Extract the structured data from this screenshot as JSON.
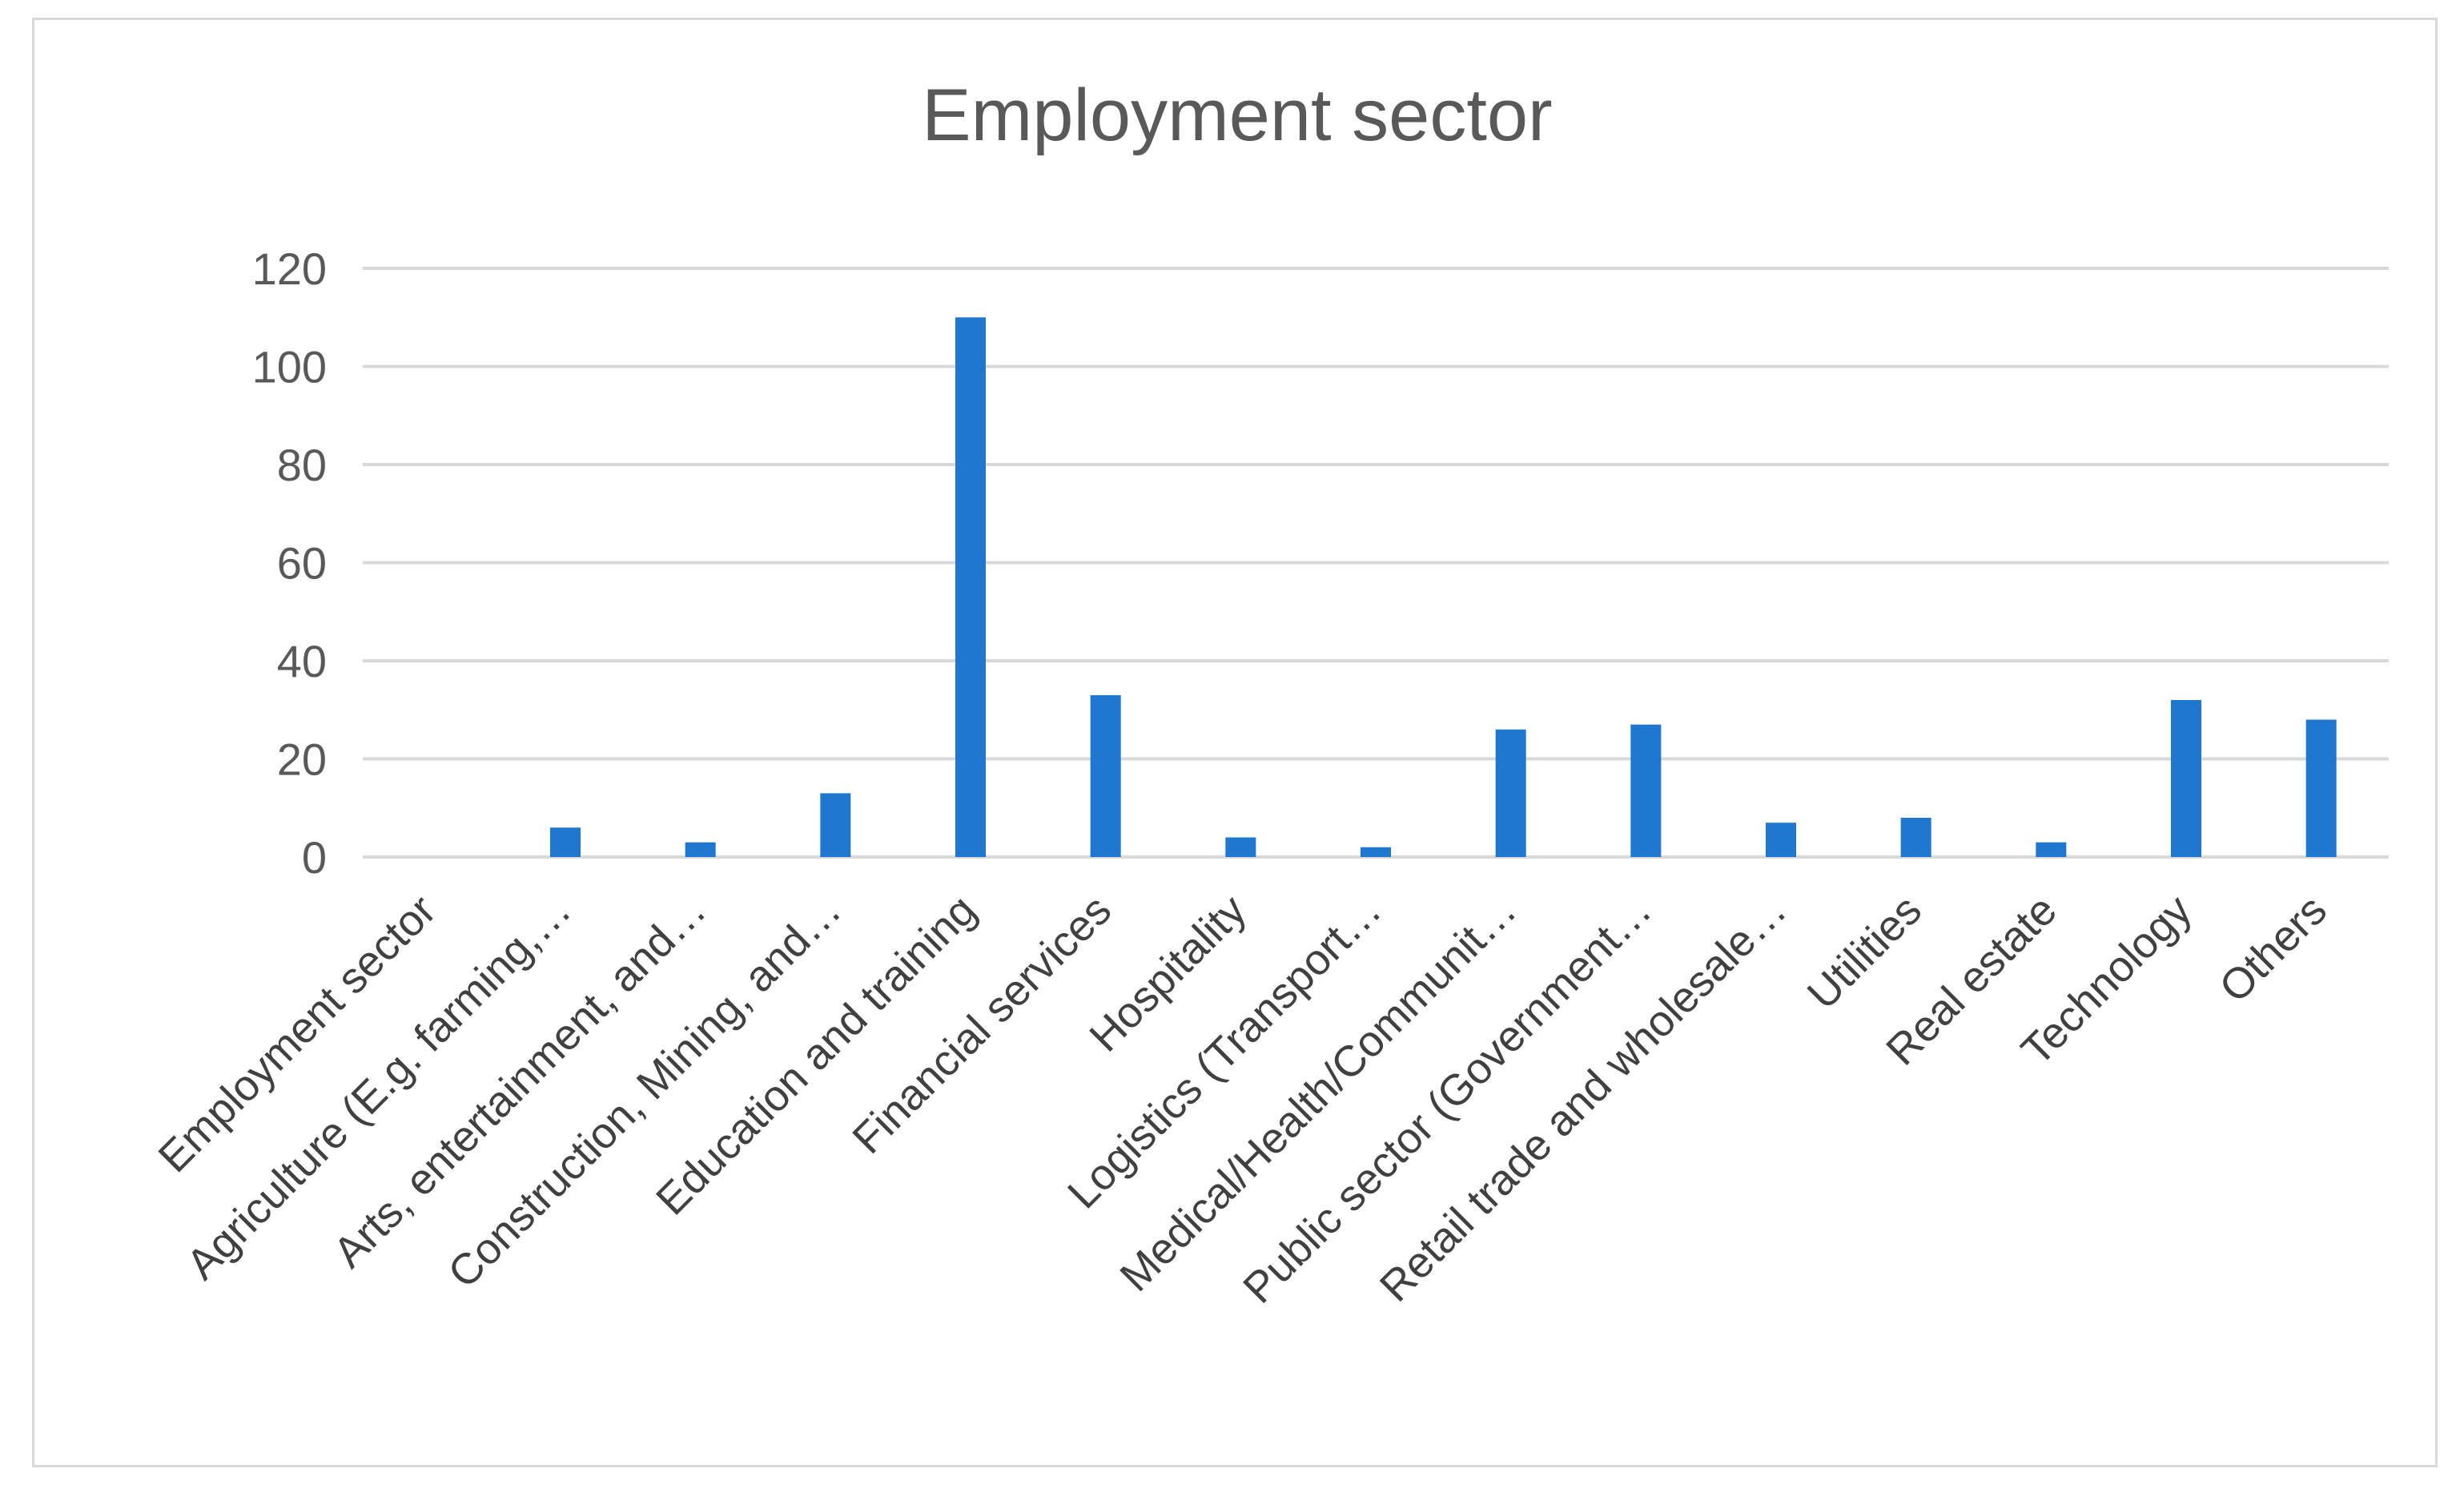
{
  "chart_data": {
    "type": "bar",
    "title": "Employment sector",
    "categories": [
      "Employment sector",
      "Agriculture (E.g. farming,…",
      "Arts, entertainment, and…",
      "Construction, Mining, and…",
      "Education and training",
      "Financial services",
      "Hospitality",
      "Logistics (Transport…",
      "Medical/Health/Communit…",
      "Public sector (Government…",
      "Retail trade and wholesale…",
      "Utilities",
      "Real estate",
      "Technology",
      "Others"
    ],
    "values": [
      0,
      6,
      3,
      13,
      110,
      33,
      4,
      2,
      26,
      27,
      7,
      8,
      3,
      32,
      28
    ],
    "ylim": [
      0,
      120
    ],
    "yticks": [
      "0",
      "20",
      "40",
      "60",
      "80",
      "100",
      "120"
    ],
    "grid": true,
    "legend": "none",
    "bar_color": "#1f77d0",
    "xlabel": "",
    "ylabel": ""
  }
}
